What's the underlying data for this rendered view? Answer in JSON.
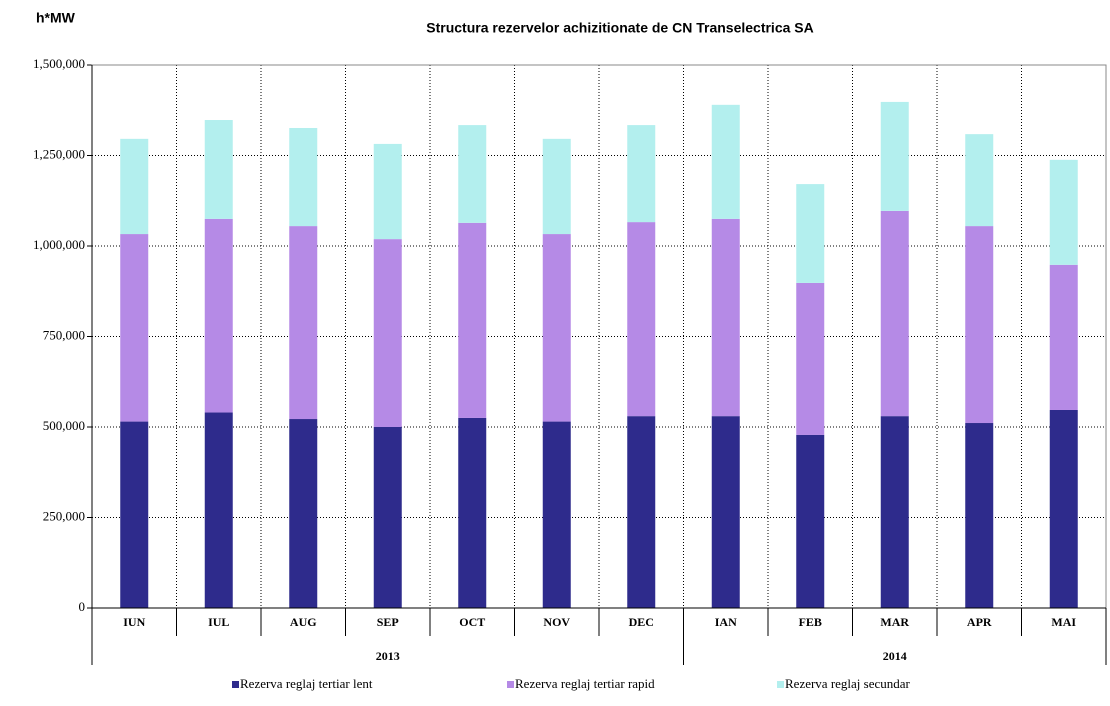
{
  "chart_data": {
    "type": "stacked_bar",
    "title": "Structura rezervelor achizitionate de CN Transelectrica SA",
    "y_label": "h*MW",
    "categories": [
      "IUN",
      "IUL",
      "AUG",
      "SEP",
      "OCT",
      "NOV",
      "DEC",
      "IAN",
      "FEB",
      "MAR",
      "APR",
      "MAI"
    ],
    "groups": [
      {
        "label": "2013",
        "count": 7
      },
      {
        "label": "2014",
        "count": 5
      }
    ],
    "series": [
      {
        "name": "Rezerva reglaj tertiar lent",
        "color": "#2e2b8c",
        "values": [
          515000,
          540000,
          522000,
          500000,
          525000,
          515000,
          530000,
          530000,
          478000,
          530000,
          511000,
          547000
        ]
      },
      {
        "name": "Rezerva reglaj tertiar rapid",
        "color": "#b58ae6",
        "values": [
          518000,
          535000,
          533000,
          519000,
          539000,
          518000,
          536000,
          545000,
          420000,
          567000,
          544000,
          401000
        ]
      },
      {
        "name": "Rezerva reglaj secundar",
        "color": "#b3efee",
        "values": [
          263000,
          273000,
          271000,
          263000,
          270000,
          263000,
          268000,
          315000,
          273000,
          301000,
          254000,
          290000
        ]
      }
    ],
    "ylim": [
      0,
      1500000
    ],
    "yticks": [
      0,
      {
        "value": 250000,
        "label": "250,000"
      },
      {
        "value": 500000,
        "label": "500,000"
      },
      {
        "value": 750000,
        "label": "750,000"
      },
      {
        "value": 1000000,
        "label": "1,000,000"
      },
      {
        "value": 1250000,
        "label": "1,250,000"
      },
      {
        "value": 1500000,
        "label": "1,500,000"
      }
    ],
    "grid": true
  }
}
